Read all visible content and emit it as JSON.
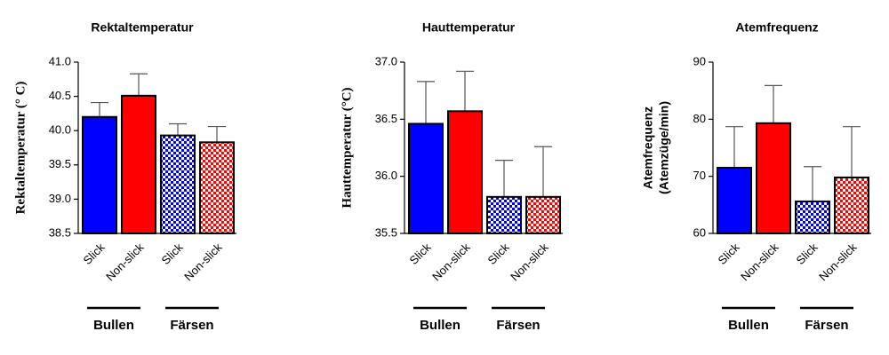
{
  "chart_data": [
    {
      "type": "bar",
      "title": "Rektaltemperatur",
      "ylabel": "Rektaltemperatur (° C)",
      "categories": [
        "Slick",
        "Non-slick",
        "Slick",
        "Non-slick"
      ],
      "groups": [
        "Bullen",
        "Färsen"
      ],
      "values": [
        40.2,
        40.51,
        39.93,
        39.83
      ],
      "errors": [
        0.21,
        0.32,
        0.17,
        0.23
      ],
      "colors": [
        "#0000ff",
        "#ff0000",
        "#0000ff",
        "#ff0000"
      ],
      "patterns": [
        "solid",
        "solid",
        "checker",
        "checker"
      ],
      "ylim": [
        38.5,
        41.0
      ],
      "yticks": [
        38.5,
        {
          "value": 39,
          "label": "39.0"
        },
        39.5,
        {
          "value": 40,
          "label": "40.0"
        },
        40.5,
        {
          "value": 41,
          "label": "41.0"
        }
      ]
    },
    {
      "type": "bar",
      "title": "Hauttemperatur",
      "ylabel": "Hauttemperatur (°C)",
      "categories": [
        "Slick",
        "Non-slick",
        "Slick",
        "Non-slick"
      ],
      "groups": [
        "Bullen",
        "Färsen"
      ],
      "values": [
        36.46,
        36.57,
        35.82,
        35.82
      ],
      "errors": [
        0.37,
        0.35,
        0.32,
        0.44
      ],
      "colors": [
        "#0000ff",
        "#ff0000",
        "#0000ff",
        "#ff0000"
      ],
      "patterns": [
        "solid",
        "solid",
        "checker",
        "checker"
      ],
      "ylim": [
        35.5,
        37.0
      ],
      "yticks": [
        35.5,
        {
          "value": 36,
          "label": "36.0"
        },
        36.5,
        {
          "value": 37,
          "label": "37.0"
        }
      ]
    },
    {
      "type": "bar",
      "title": "Atemfrequenz",
      "ylabel": [
        "Atemfrequenz",
        "(Atemzüge/min)"
      ],
      "categories": [
        "Slick",
        "Non-slick",
        "Slick",
        "Non-slick"
      ],
      "groups": [
        "Bullen",
        "Färsen"
      ],
      "values": [
        71.5,
        79.3,
        65.6,
        69.8
      ],
      "errors": [
        7.2,
        6.6,
        6.1,
        8.9
      ],
      "colors": [
        "#0000ff",
        "#ff0000",
        "#0000ff",
        "#ff0000"
      ],
      "patterns": [
        "solid",
        "solid",
        "checker",
        "checker"
      ],
      "ylim": [
        60,
        90
      ],
      "yticks": [
        60,
        70,
        80,
        90
      ]
    }
  ]
}
